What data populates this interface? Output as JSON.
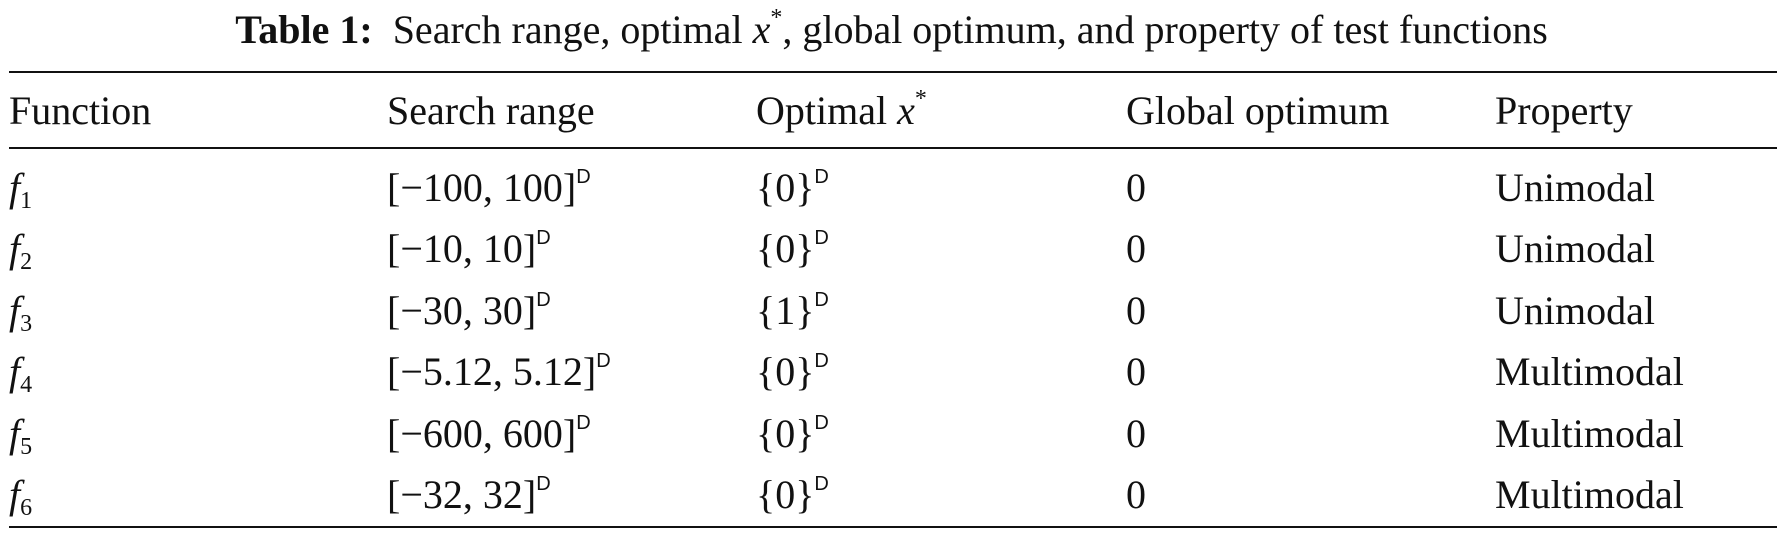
{
  "caption": {
    "label": "Table 1:",
    "text_before": "Search range, optimal ",
    "var": "x",
    "sup": "*",
    "text_after": ", global optimum, and property of test functions"
  },
  "table": {
    "header": {
      "function": "Function",
      "search_range": "Search range",
      "optimal": {
        "text": "Optimal ",
        "var": "x",
        "sup": "*"
      },
      "global_optimum": "Global optimum",
      "property": "Property"
    },
    "rows": [
      {
        "function": {
          "name": "f",
          "index": "1"
        },
        "search_range": {
          "range": "[−100, 100]",
          "power": "D"
        },
        "optimal": {
          "value": "{0}",
          "power": "D"
        },
        "global_optimum": "0",
        "property": "Unimodal"
      },
      {
        "function": {
          "name": "f",
          "index": "2"
        },
        "search_range": {
          "range": "[−10, 10]",
          "power": "D"
        },
        "optimal": {
          "value": "{0}",
          "power": "D"
        },
        "global_optimum": "0",
        "property": "Unimodal"
      },
      {
        "function": {
          "name": "f",
          "index": "3"
        },
        "search_range": {
          "range": "[−30, 30]",
          "power": "D"
        },
        "optimal": {
          "value": "{1}",
          "power": "D"
        },
        "global_optimum": "0",
        "property": "Unimodal"
      },
      {
        "function": {
          "name": "f",
          "index": "4"
        },
        "search_range": {
          "range": "[−5.12, 5.12]",
          "power": "D"
        },
        "optimal": {
          "value": "{0}",
          "power": "D"
        },
        "global_optimum": "0",
        "property": "Multimodal"
      },
      {
        "function": {
          "name": "f",
          "index": "5"
        },
        "search_range": {
          "range": "[−600, 600]",
          "power": "D"
        },
        "optimal": {
          "value": "{0}",
          "power": "D"
        },
        "global_optimum": "0",
        "property": "Multimodal"
      },
      {
        "function": {
          "name": "f",
          "index": "6"
        },
        "search_range": {
          "range": "[−32, 32]",
          "power": "D"
        },
        "optimal": {
          "value": "{0}",
          "power": "D"
        },
        "global_optimum": "0",
        "property": "Multimodal"
      }
    ]
  }
}
